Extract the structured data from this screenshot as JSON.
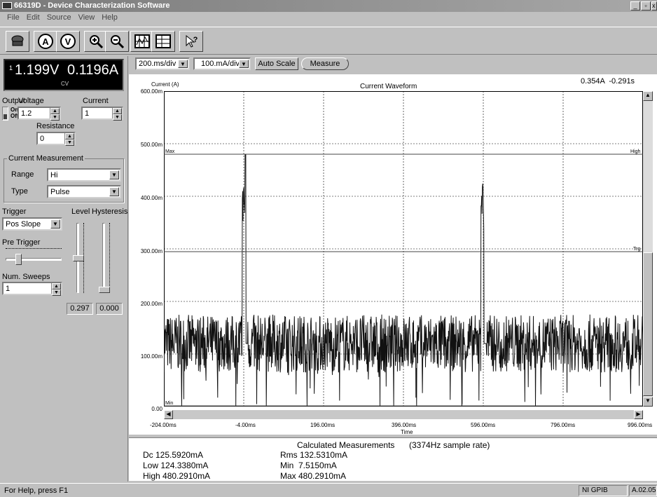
{
  "window": {
    "title": "66319D - Device Characterization Software",
    "controls": [
      "_",
      "🗗",
      "✕"
    ]
  },
  "menu": [
    "File",
    "Edit",
    "Source",
    "View",
    "Help"
  ],
  "toolbar": {
    "icons": [
      "power-icon",
      "ammeter-icon",
      "voltmeter-icon",
      "zoom-in-icon",
      "zoom-out-icon",
      "grid-icon",
      "split-grid-icon",
      "whats-this-help-icon"
    ]
  },
  "display": {
    "channel": "1",
    "voltage": "1.199V",
    "current": "0.1196A",
    "mode": "CV"
  },
  "output": {
    "label": "Output",
    "on": "On",
    "off": "Off",
    "state": "Off"
  },
  "voltage": {
    "label": "Voltage",
    "value": "1.2"
  },
  "current": {
    "label": "Current",
    "value": "1"
  },
  "resistance": {
    "label": "Resistance",
    "value": "0"
  },
  "current_measurement": {
    "title": "Current Measurement",
    "range_label": "Range",
    "range_value": "Hi",
    "type_label": "Type",
    "type_value": "Pulse"
  },
  "trigger": {
    "label": "Trigger",
    "value": "Pos Slope",
    "level_label": "Level",
    "hysteresis_label": "Hysteresis",
    "pre_trigger_label": "Pre Trigger",
    "sweeps_label": "Num. Sweeps",
    "sweeps_value": "1",
    "level_value": "0.297",
    "hysteresis_value": "0.000",
    "level_slider": 0.5,
    "hysteresis_slider": 0.0,
    "pre_trigger_slider": 0.2
  },
  "plot_controls": {
    "timebase": "200.ms/div",
    "current_scale": "100.mA/div",
    "auto_scale": "Auto Scale",
    "measure": "Measure"
  },
  "plot": {
    "title": "Current Waveform",
    "y_axis": "Current (A)",
    "x_axis": "Time",
    "cursor_readout": "0.354A  -0.291s",
    "y_ticks": [
      "600.00m",
      "500.00m",
      "400.00m",
      "300.00m",
      "200.00m",
      "100.00m",
      "0.00"
    ],
    "x_ticks": [
      "-204.00ms",
      "-4.00ms",
      "196.00ms",
      "396.00ms",
      "596.00ms",
      "796.00ms",
      "996.00ms"
    ],
    "markers": {
      "max": "Max",
      "min": "Min",
      "high": "High",
      "trg": "Trg"
    }
  },
  "chart_data": {
    "type": "line",
    "title": "Current Waveform",
    "xlabel": "Time",
    "ylabel": "Current (A)",
    "xlim": [
      -204,
      996
    ],
    "ylim": [
      0,
      0.6
    ],
    "grid": true,
    "series": [
      {
        "values": "noisy baseline ~0.12 A with pulses to ~0.43 A near -4 ms and 596 ms"
      }
    ],
    "levels": {
      "max": 0.48,
      "trigger": 0.297,
      "min": 0.0
    }
  },
  "calc": {
    "title": "Calculated Measurements",
    "rate": "(3374Hz sample rate)",
    "dc": "Dc 125.5920mA",
    "low": "Low 124.3380mA",
    "high": "High 480.2910mA",
    "rms": "Rms 132.5310mA",
    "min": "Min  7.5150mA",
    "max": "Max 480.2910mA"
  },
  "status": {
    "help": "For Help, press F1",
    "iface": "NI GPIB",
    "version": "A.02.05"
  }
}
